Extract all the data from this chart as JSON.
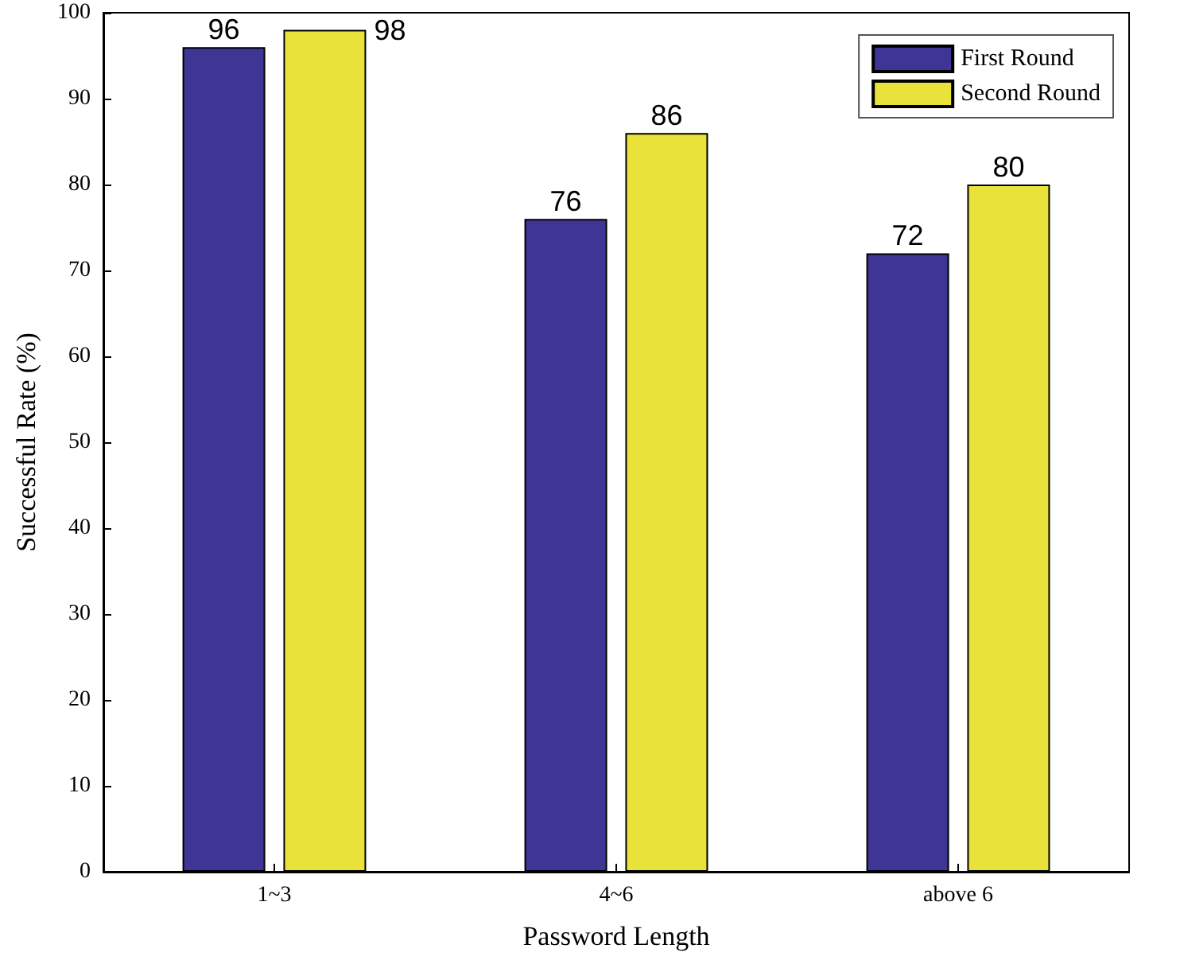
{
  "chart_data": {
    "type": "bar",
    "xlabel": "Password Length",
    "ylabel": "Successful Rate (%)",
    "categories": [
      "1~3",
      "4~6",
      "above 6"
    ],
    "series": [
      {
        "name": "First Round",
        "color": "#3f3594",
        "values": [
          96,
          76,
          72
        ]
      },
      {
        "name": "Second Round",
        "color": "#e8e23a",
        "values": [
          98,
          86,
          80
        ]
      }
    ],
    "ylim": [
      0,
      100
    ],
    "yticks": [
      0,
      10,
      20,
      30,
      40,
      50,
      60,
      70,
      80,
      90,
      100
    ],
    "data_labels": true,
    "legend": "top right",
    "grid": false
  }
}
